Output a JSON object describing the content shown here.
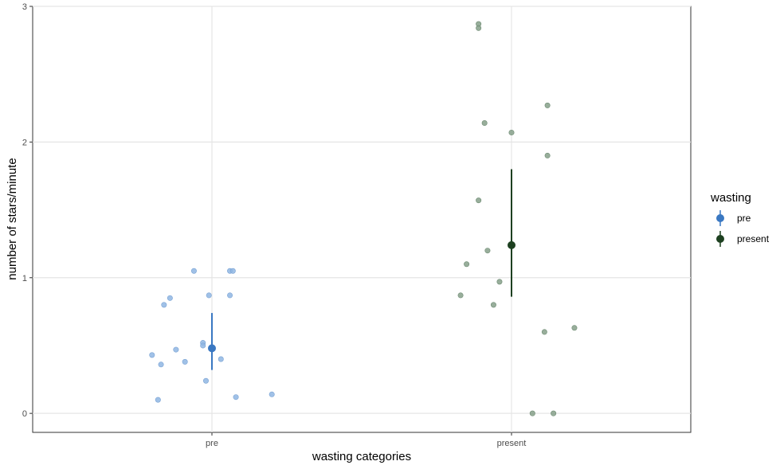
{
  "chart_data": {
    "type": "scatter",
    "xlabel": "wasting categories",
    "ylabel": "number of stars/minute",
    "categories": [
      "pre",
      "present"
    ],
    "ylim": [
      -0.14,
      3.0
    ],
    "yticks": [
      "0",
      "1",
      "2",
      "3"
    ],
    "grid": true,
    "legend": {
      "title": "wasting",
      "placement": "right",
      "entries": [
        "pre",
        "present"
      ]
    },
    "colors": {
      "pre": "#3a78c2",
      "present": "#1d4020",
      "pre_points": "#8fb6e3",
      "present_points": "#86a08a"
    },
    "series": [
      {
        "name": "pre",
        "jitter_points": [
          {
            "x": -0.06,
            "y": 1.05
          },
          {
            "x": 0.06,
            "y": 1.05
          },
          {
            "x": 0.07,
            "y": 1.05
          },
          {
            "x": -0.14,
            "y": 0.85
          },
          {
            "x": -0.16,
            "y": 0.8
          },
          {
            "x": -0.01,
            "y": 0.87
          },
          {
            "x": 0.06,
            "y": 0.87
          },
          {
            "x": -0.03,
            "y": 0.52
          },
          {
            "x": -0.03,
            "y": 0.5
          },
          {
            "x": -0.12,
            "y": 0.47
          },
          {
            "x": -0.2,
            "y": 0.43
          },
          {
            "x": -0.09,
            "y": 0.38
          },
          {
            "x": -0.17,
            "y": 0.36
          },
          {
            "x": 0.03,
            "y": 0.4
          },
          {
            "x": -0.02,
            "y": 0.24
          },
          {
            "x": 0.08,
            "y": 0.12
          },
          {
            "x": 0.2,
            "y": 0.14
          },
          {
            "x": -0.18,
            "y": 0.1
          }
        ],
        "mean": 0.48,
        "interval": [
          0.32,
          0.74
        ]
      },
      {
        "name": "present",
        "jitter_points": [
          {
            "x": -0.11,
            "y": 2.87
          },
          {
            "x": -0.11,
            "y": 2.84
          },
          {
            "x": 0.12,
            "y": 2.27
          },
          {
            "x": -0.09,
            "y": 2.14
          },
          {
            "x": 0.0,
            "y": 2.07
          },
          {
            "x": 0.12,
            "y": 1.9
          },
          {
            "x": -0.11,
            "y": 1.57
          },
          {
            "x": -0.08,
            "y": 1.2
          },
          {
            "x": -0.15,
            "y": 1.1
          },
          {
            "x": -0.04,
            "y": 0.97
          },
          {
            "x": -0.17,
            "y": 0.87
          },
          {
            "x": -0.06,
            "y": 0.8
          },
          {
            "x": 0.21,
            "y": 0.63
          },
          {
            "x": 0.11,
            "y": 0.6
          },
          {
            "x": 0.07,
            "y": 0.0
          },
          {
            "x": 0.14,
            "y": 0.0
          }
        ],
        "mean": 1.24,
        "interval": [
          0.86,
          1.8
        ]
      }
    ]
  }
}
